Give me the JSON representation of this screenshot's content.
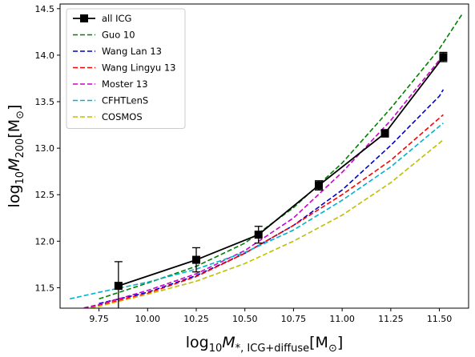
{
  "chart_data": {
    "type": "line",
    "xlim": [
      9.55,
      11.65
    ],
    "ylim": [
      11.28,
      14.55
    ],
    "x_ticks": [
      9.75,
      10.0,
      10.25,
      10.5,
      10.75,
      11.0,
      11.25,
      11.5
    ],
    "x_tick_labels": [
      "9.75",
      "10.00",
      "10.25",
      "10.50",
      "10.75",
      "11.00",
      "11.25",
      "11.50"
    ],
    "y_ticks": [
      11.5,
      12.0,
      12.5,
      13.0,
      13.5,
      14.0,
      14.5
    ],
    "y_tick_labels": [
      "11.5",
      "12.0",
      "12.5",
      "13.0",
      "13.5",
      "14.0",
      "14.5"
    ],
    "xlabel": {
      "prefix": "log",
      "prefix_sub": "10",
      "main": "M",
      "main_sub": "*, ICG+diffuse",
      "unit_open": "[M",
      "unit_sub": "⊙",
      "unit_close": "]"
    },
    "ylabel": {
      "prefix": "log",
      "prefix_sub": "10",
      "main": "M",
      "main_sub": "200",
      "unit_open": "[M",
      "unit_sub": "⊙",
      "unit_close": "]"
    },
    "legend_position": "top-left",
    "grid": false,
    "data_series": {
      "name": "all ICG",
      "color": "#000000",
      "points": [
        {
          "x": 9.85,
          "y": 11.52,
          "err": 0.26
        },
        {
          "x": 10.25,
          "y": 11.8,
          "err": 0.13
        },
        {
          "x": 10.57,
          "y": 12.07,
          "err": 0.09
        },
        {
          "x": 10.88,
          "y": 12.6,
          "err": 0.05
        },
        {
          "x": 11.22,
          "y": 13.16,
          "err": 0.04
        },
        {
          "x": 11.52,
          "y": 13.98,
          "err": 0.05
        }
      ]
    },
    "model_series": [
      {
        "name": "Guo 10",
        "color": "#008000",
        "x": [
          9.75,
          10.0,
          10.25,
          10.5,
          10.75,
          11.0,
          11.25,
          11.5,
          11.62
        ],
        "y": [
          11.38,
          11.55,
          11.73,
          11.98,
          12.36,
          12.84,
          13.43,
          14.07,
          14.45
        ]
      },
      {
        "name": "Wang Lan 13",
        "color": "#0000cc",
        "x": [
          9.75,
          10.0,
          10.25,
          10.5,
          10.75,
          11.0,
          11.25,
          11.5,
          11.52
        ],
        "y": [
          11.33,
          11.45,
          11.63,
          11.87,
          12.17,
          12.55,
          13.03,
          13.56,
          13.63
        ]
      },
      {
        "name": "Wang Lingyu 13",
        "color": "#ff0000",
        "x": [
          9.6,
          9.75,
          10.0,
          10.25,
          10.5,
          10.75,
          11.0,
          11.25,
          11.52
        ],
        "y": [
          11.24,
          11.31,
          11.44,
          11.62,
          11.87,
          12.17,
          12.5,
          12.87,
          13.36
        ]
      },
      {
        "name": "Moster 13",
        "color": "#cc00cc",
        "x": [
          9.6,
          9.75,
          10.0,
          10.25,
          10.5,
          10.75,
          11.0,
          11.25,
          11.52
        ],
        "y": [
          11.25,
          11.32,
          11.47,
          11.65,
          11.9,
          12.25,
          12.74,
          13.3,
          14.0
        ]
      },
      {
        "name": "CFHTLenS",
        "color": "#00b3cc",
        "x": [
          9.6,
          9.75,
          10.0,
          10.25,
          10.5,
          10.75,
          11.0,
          11.25,
          11.52
        ],
        "y": [
          11.38,
          11.45,
          11.56,
          11.7,
          11.88,
          12.12,
          12.44,
          12.8,
          13.27
        ]
      },
      {
        "name": "COSMOS",
        "color": "#bfbf00",
        "x": [
          9.6,
          9.75,
          10.0,
          10.25,
          10.5,
          10.75,
          11.0,
          11.25,
          11.52
        ],
        "y": [
          11.23,
          11.3,
          11.43,
          11.57,
          11.76,
          12.0,
          12.28,
          12.63,
          13.09
        ]
      }
    ]
  }
}
